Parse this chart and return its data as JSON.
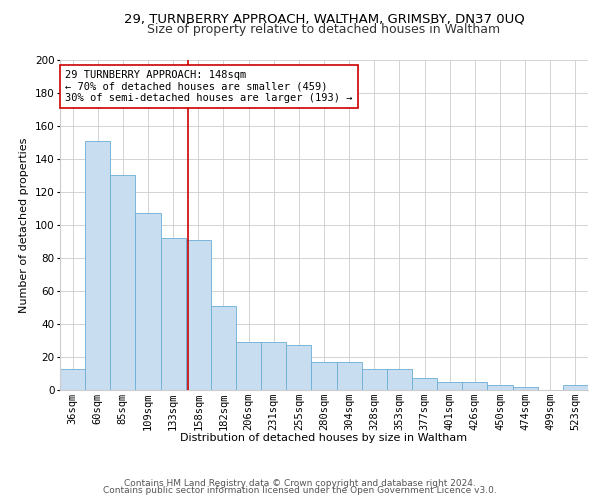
{
  "title1": "29, TURNBERRY APPROACH, WALTHAM, GRIMSBY, DN37 0UQ",
  "title2": "Size of property relative to detached houses in Waltham",
  "xlabel": "Distribution of detached houses by size in Waltham",
  "ylabel": "Number of detached properties",
  "footer1": "Contains HM Land Registry data © Crown copyright and database right 2024.",
  "footer2": "Contains public sector information licensed under the Open Government Licence v3.0.",
  "annotation_line1": "29 TURNBERRY APPROACH: 148sqm",
  "annotation_line2": "← 70% of detached houses are smaller (459)",
  "annotation_line3": "30% of semi-detached houses are larger (193) →",
  "bar_color": "#c8ddf0",
  "bar_edge_color": "#6aaed6",
  "vline_color": "#cc0000",
  "annotation_box_color": "#ffffff",
  "annotation_box_edge": "#cc0000",
  "background_color": "#ffffff",
  "grid_color": "#cccccc",
  "categories": [
    "36sqm",
    "60sqm",
    "85sqm",
    "109sqm",
    "133sqm",
    "158sqm",
    "182sqm",
    "206sqm",
    "231sqm",
    "255sqm",
    "280sqm",
    "304sqm",
    "328sqm",
    "353sqm",
    "377sqm",
    "401sqm",
    "426sqm",
    "450sqm",
    "474sqm",
    "499sqm",
    "523sqm"
  ],
  "values": [
    13,
    151,
    130,
    107,
    92,
    91,
    51,
    29,
    29,
    27,
    17,
    17,
    13,
    13,
    7,
    5,
    5,
    3,
    2,
    0,
    3
  ],
  "ylim": [
    0,
    200
  ],
  "yticks": [
    0,
    20,
    40,
    60,
    80,
    100,
    120,
    140,
    160,
    180,
    200
  ],
  "title1_fontsize": 9.5,
  "title2_fontsize": 9,
  "axis_label_fontsize": 8,
  "tick_fontsize": 7.5,
  "annotation_fontsize": 7.5,
  "footer_fontsize": 6.5
}
